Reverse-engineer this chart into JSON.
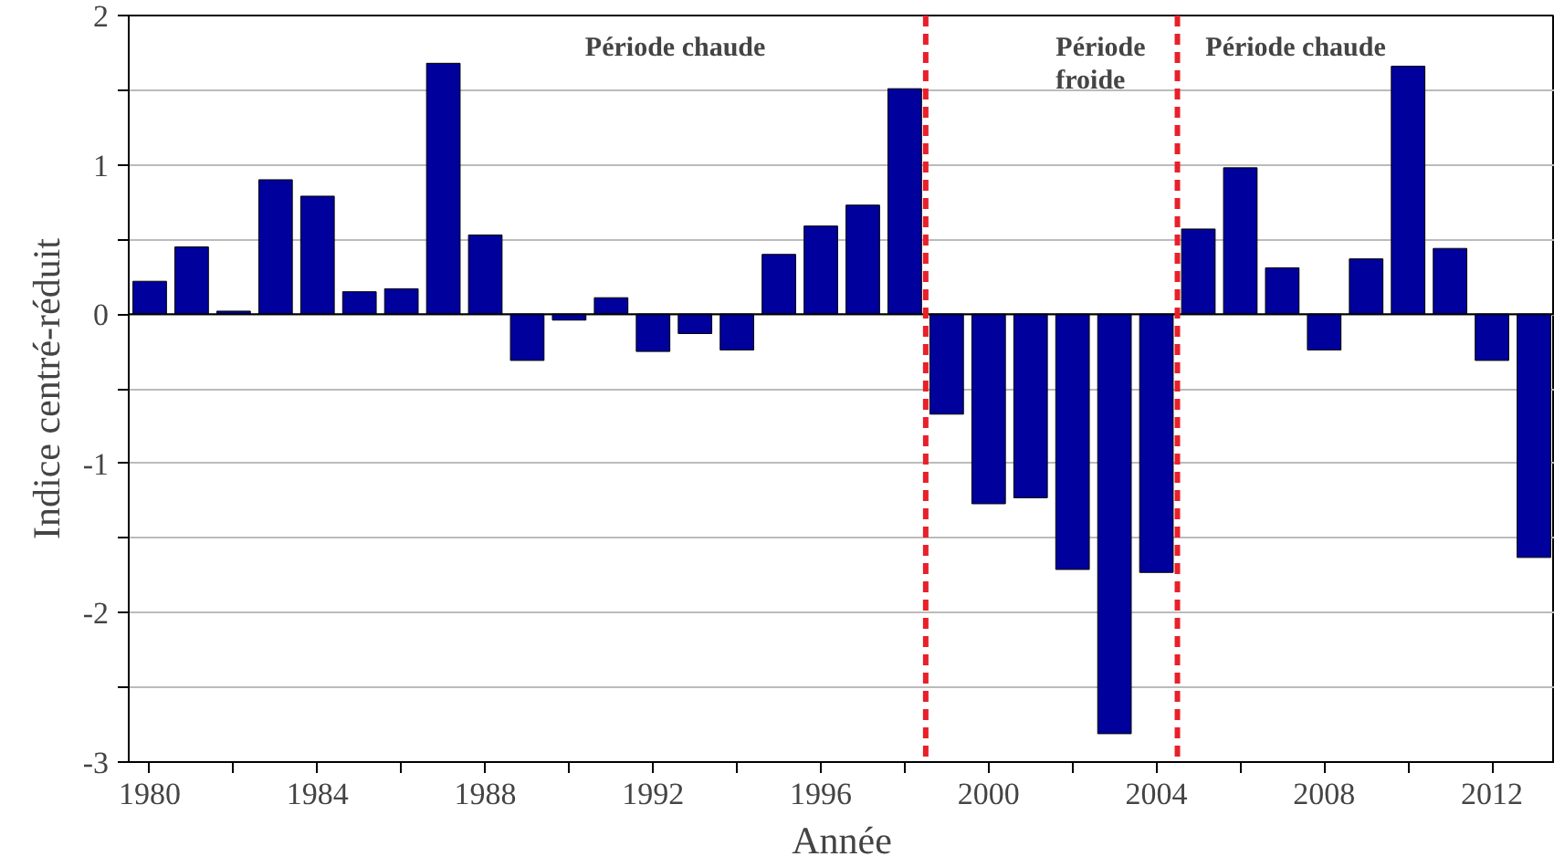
{
  "chart_data": {
    "type": "bar",
    "xlabel": "Année",
    "ylabel": "Indice centré-réduit",
    "x": [
      1980,
      1981,
      1982,
      1983,
      1984,
      1985,
      1986,
      1987,
      1988,
      1989,
      1990,
      1991,
      1992,
      1993,
      1994,
      1995,
      1996,
      1997,
      1998,
      1999,
      2000,
      2001,
      2002,
      2003,
      2004,
      2005,
      2006,
      2007,
      2008,
      2009,
      2010,
      2011,
      2012,
      2013
    ],
    "values": [
      0.22,
      0.45,
      0.02,
      0.9,
      0.79,
      0.15,
      0.17,
      1.68,
      0.53,
      -0.31,
      -0.04,
      0.11,
      -0.25,
      -0.13,
      -0.24,
      0.4,
      0.59,
      0.73,
      1.51,
      -0.67,
      -1.27,
      -1.23,
      -1.71,
      -2.81,
      -1.73,
      0.57,
      0.98,
      0.31,
      -0.24,
      0.37,
      1.66,
      0.44,
      -0.31,
      -1.63
    ],
    "color": "#00009c",
    "xlim": [
      1979.5,
      2013.5
    ],
    "xticks": [
      1980,
      {
        "value": 1982,
        "label": null
      },
      1984,
      {
        "value": 1986,
        "label": null
      },
      1988,
      {
        "value": 1990,
        "label": null
      },
      1992,
      {
        "value": 1994,
        "label": null
      },
      1996,
      {
        "value": 1998,
        "label": null
      },
      2000,
      {
        "value": 2002,
        "label": null
      },
      2004,
      {
        "value": 2006,
        "label": null
      },
      2008,
      {
        "value": 2010,
        "label": null
      },
      2012
    ],
    "ylim": [
      -3,
      2
    ],
    "yticks": [
      -3,
      {
        "value": -2.5,
        "label": null
      },
      -2,
      {
        "value": -1.5,
        "label": null
      },
      -1,
      {
        "value": -0.5,
        "label": null
      },
      0,
      {
        "value": 0.5,
        "label": null
      },
      1,
      {
        "value": 1.5,
        "label": null
      },
      2
    ],
    "grid": "y",
    "ref_lines": [
      {
        "axis": "x",
        "value": 1998.5,
        "color": "#e8202a",
        "line_style": "dashed"
      },
      {
        "axis": "x",
        "value": 2004.5,
        "color": "#e8202a",
        "line_style": "dashed"
      }
    ],
    "annotations": [
      "Période chaude",
      "Période\nfroide",
      "Période chaude"
    ]
  }
}
